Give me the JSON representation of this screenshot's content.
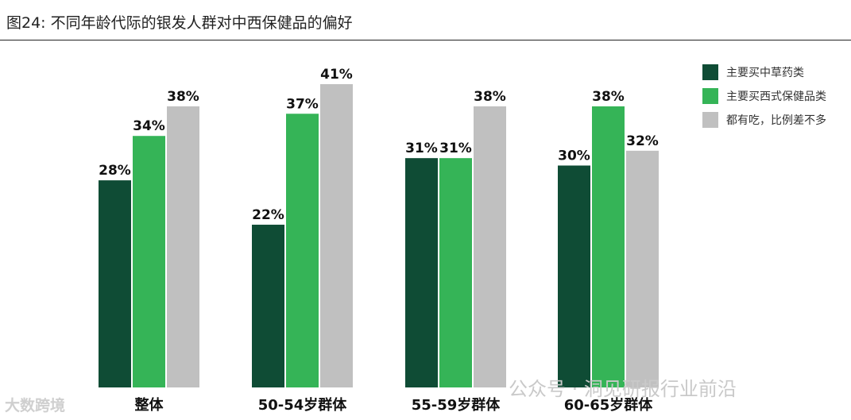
{
  "title": "图24: 不同年龄代际的银发人群对中西保健品的偏好",
  "chart_data": {
    "type": "bar",
    "categories": [
      "整体",
      "50-54岁群体",
      "55-59岁群体",
      "60-65岁群体"
    ],
    "series": [
      {
        "name": "主要买中草药类",
        "values": [
          28,
          22,
          31,
          30
        ],
        "labels": [
          "28%",
          "22%",
          "31%",
          "30%"
        ],
        "color": "#0f4c35"
      },
      {
        "name": "主要买西式保健品类",
        "values": [
          34,
          37,
          31,
          38
        ],
        "labels": [
          "34%",
          "37%",
          "31%",
          "38%"
        ],
        "color": "#35b457"
      },
      {
        "name": "都有吃，比例差不多",
        "values": [
          38,
          41,
          38,
          32
        ],
        "labels": [
          "38%",
          "41%",
          "38%",
          "32%"
        ],
        "color": "#c0c0c0"
      }
    ],
    "ylim": [
      0,
      45
    ],
    "legend_position": "top-right",
    "grid": false
  },
  "watermarks": {
    "left": "大数跨境",
    "right": "公众号 · 洞见研报行业前沿"
  }
}
